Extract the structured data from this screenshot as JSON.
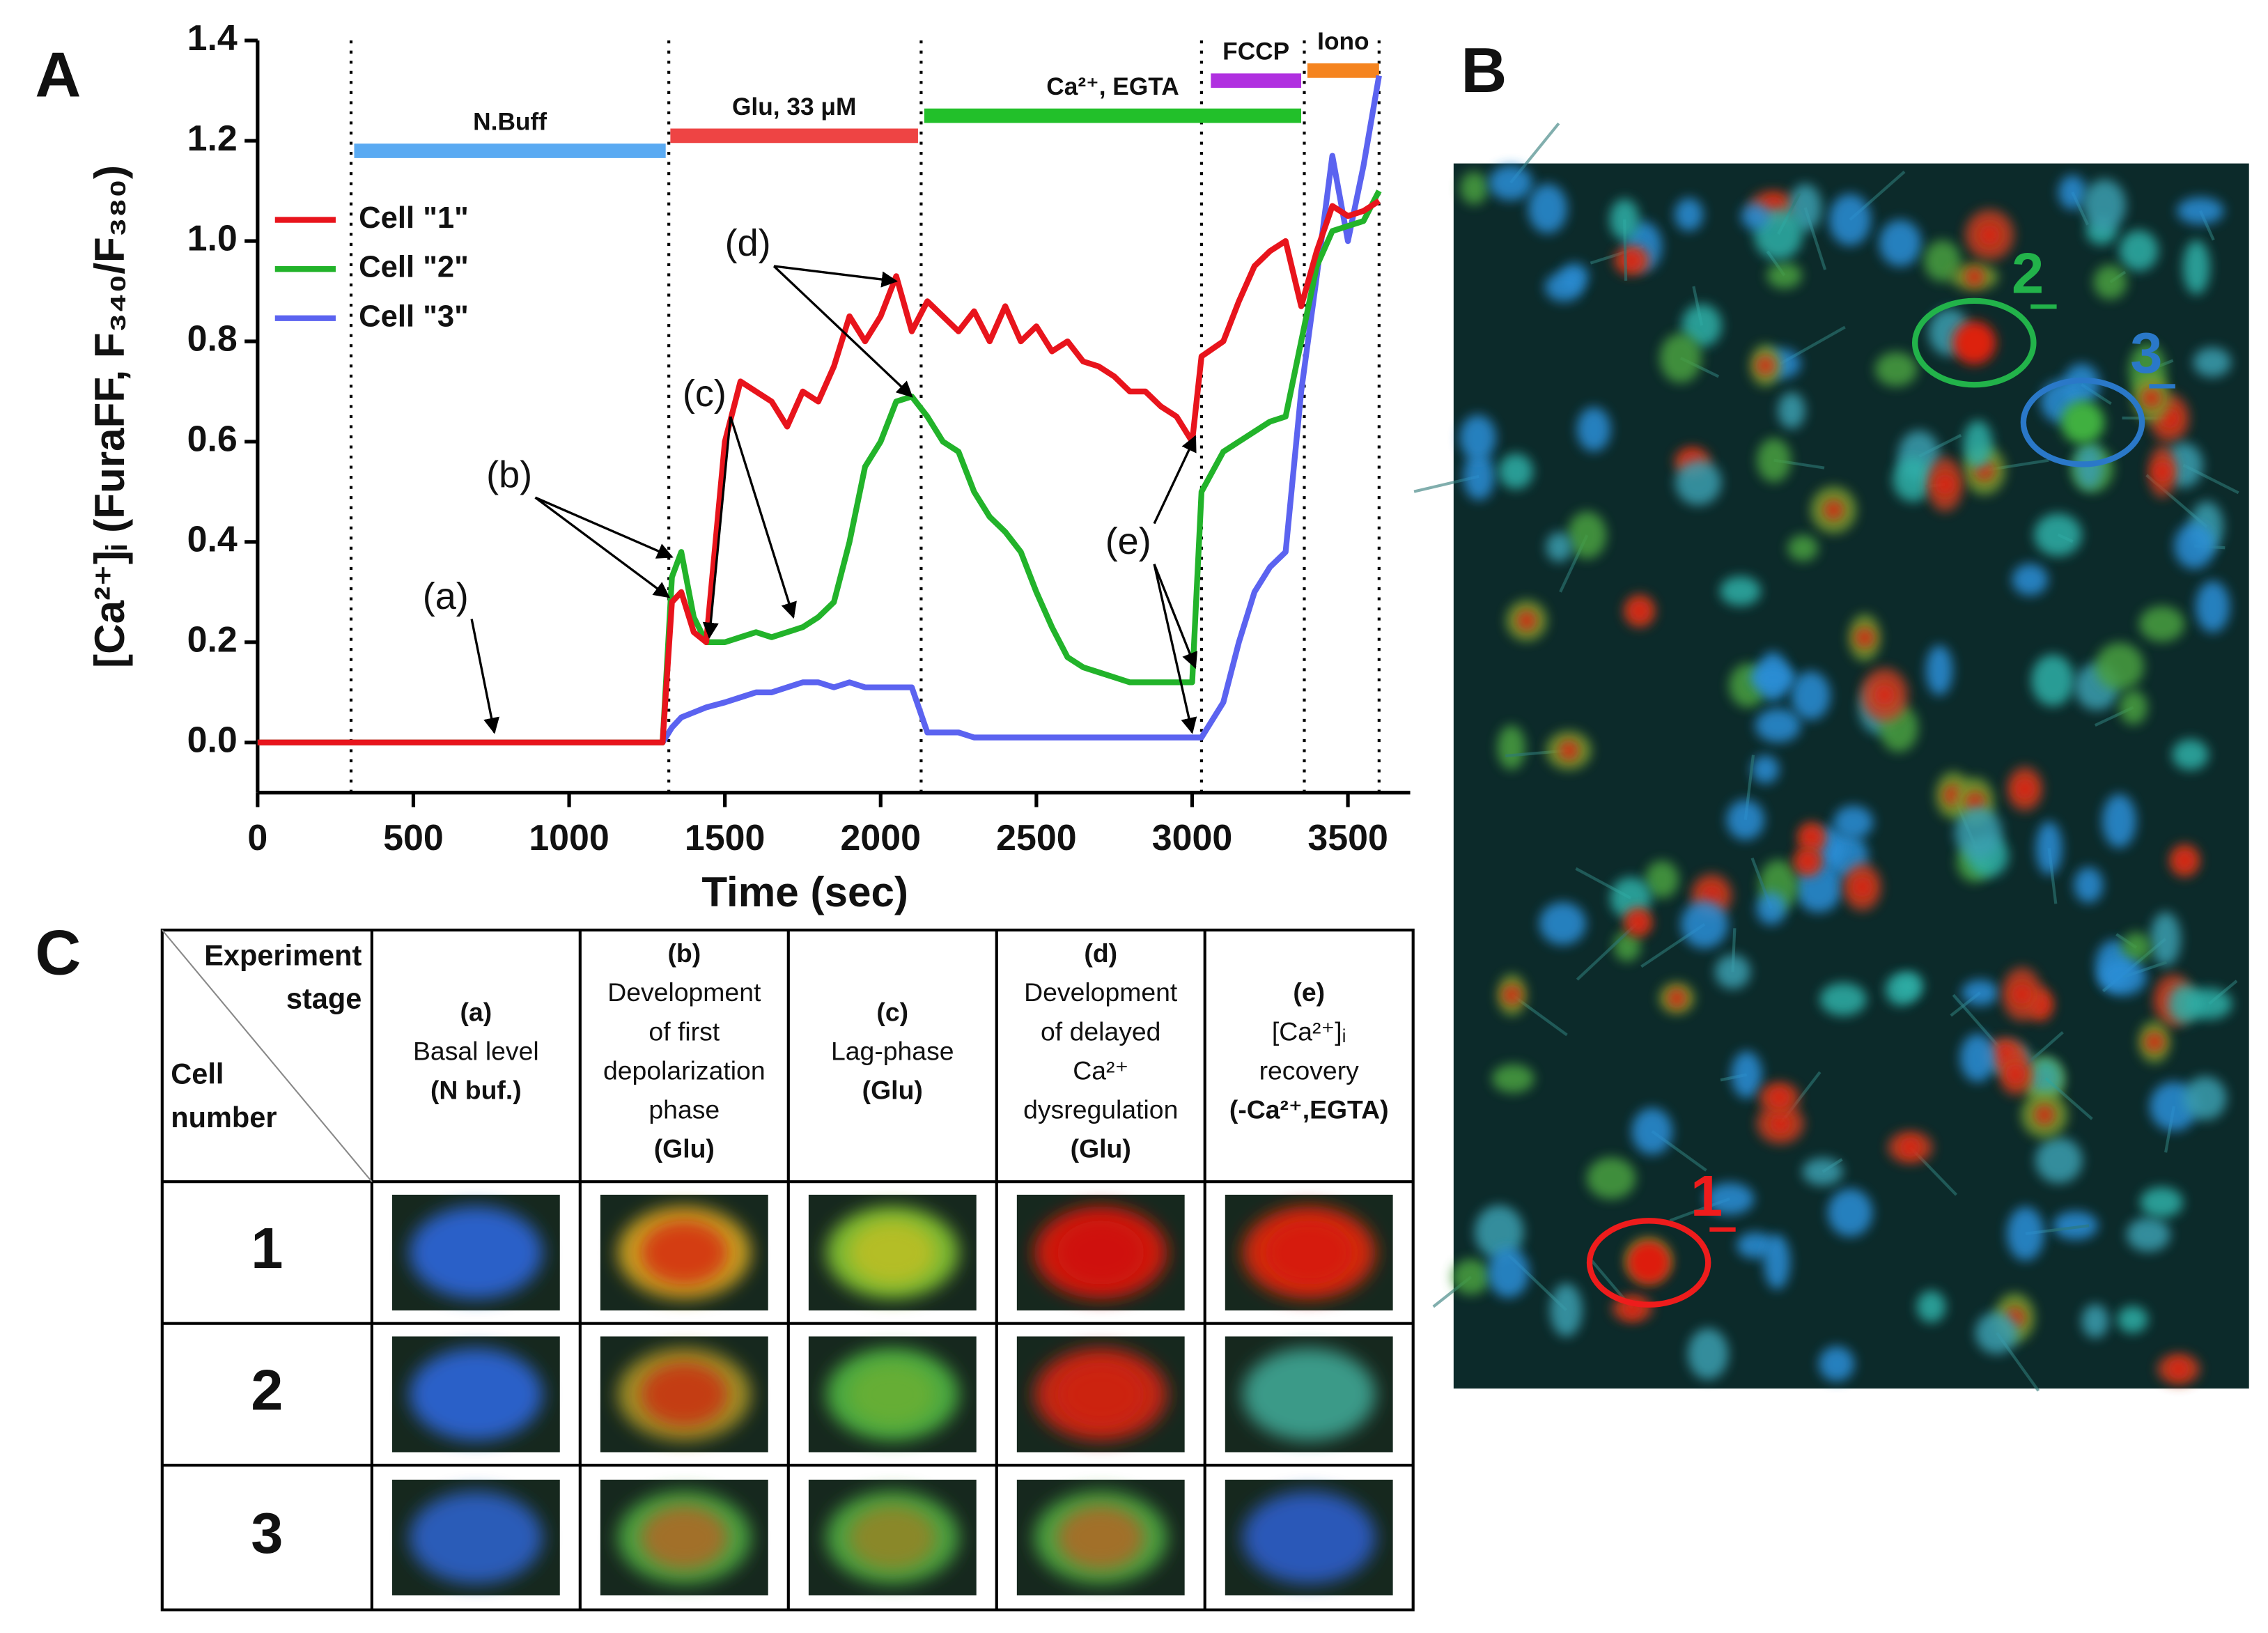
{
  "chart_data": {
    "type": "line",
    "x_label": "Time (sec)",
    "y_label": "[Ca²⁺]ᵢ (FuraFF, F₃₄₀/F₃₈₀)",
    "xlim": [
      0,
      3700
    ],
    "ylim": [
      -0.1,
      1.4
    ],
    "xticks": [
      0,
      500,
      1000,
      1500,
      2000,
      2500,
      3000,
      3500
    ],
    "yticks": [
      {
        "value": 0,
        "label": "0.0"
      },
      0.2,
      0.4,
      0.6,
      0.8,
      {
        "value": 1,
        "label": "1.0"
      },
      1.2,
      1.4
    ],
    "legend": "upper left",
    "x": [
      0,
      100,
      200,
      300,
      400,
      500,
      600,
      700,
      800,
      900,
      1000,
      1100,
      1200,
      1300,
      1330,
      1360,
      1400,
      1440,
      1500,
      1550,
      1600,
      1650,
      1700,
      1750,
      1800,
      1850,
      1900,
      1950,
      2000,
      2050,
      2100,
      2150,
      2200,
      2250,
      2300,
      2350,
      2400,
      2450,
      2500,
      2550,
      2600,
      2650,
      2700,
      2750,
      2800,
      2850,
      2900,
      2950,
      3000,
      3030,
      3100,
      3150,
      3200,
      3250,
      3300,
      3350,
      3400,
      3450,
      3500,
      3550,
      3600
    ],
    "series": [
      {
        "name": "Cell \"1\"",
        "color": "#e8141c",
        "values": [
          0,
          0,
          0,
          0,
          0,
          0,
          0,
          0,
          0,
          0,
          0,
          0,
          0,
          0,
          0.28,
          0.3,
          0.22,
          0.2,
          0.6,
          0.72,
          0.7,
          0.68,
          0.63,
          0.7,
          0.68,
          0.75,
          0.85,
          0.8,
          0.85,
          0.93,
          0.82,
          0.88,
          0.85,
          0.82,
          0.86,
          0.8,
          0.87,
          0.8,
          0.83,
          0.78,
          0.8,
          0.76,
          0.75,
          0.73,
          0.7,
          0.7,
          0.67,
          0.65,
          0.6,
          0.77,
          0.8,
          0.88,
          0.95,
          0.98,
          1.0,
          0.87,
          0.98,
          1.07,
          1.05,
          1.06,
          1.08
        ]
      },
      {
        "name": "Cell \"2\"",
        "color": "#22b32a",
        "values": [
          0,
          0,
          0,
          0,
          0,
          0,
          0,
          0,
          0,
          0,
          0,
          0,
          0,
          0,
          0.33,
          0.38,
          0.25,
          0.2,
          0.2,
          0.21,
          0.22,
          0.21,
          0.22,
          0.23,
          0.25,
          0.28,
          0.4,
          0.55,
          0.6,
          0.68,
          0.69,
          0.65,
          0.6,
          0.58,
          0.5,
          0.45,
          0.42,
          0.38,
          0.3,
          0.23,
          0.17,
          0.15,
          0.14,
          0.13,
          0.12,
          0.12,
          0.12,
          0.12,
          0.12,
          0.5,
          0.58,
          0.6,
          0.62,
          0.64,
          0.65,
          0.8,
          0.95,
          1.02,
          1.03,
          1.04,
          1.1
        ]
      },
      {
        "name": "Cell \"3\"",
        "color": "#5b63f0",
        "values": [
          0,
          0,
          0,
          0,
          0,
          0,
          0,
          0,
          0,
          0,
          0,
          0,
          0,
          0,
          0.03,
          0.05,
          0.06,
          0.07,
          0.08,
          0.09,
          0.1,
          0.1,
          0.11,
          0.12,
          0.12,
          0.11,
          0.12,
          0.11,
          0.11,
          0.11,
          0.11,
          0.02,
          0.02,
          0.02,
          0.01,
          0.01,
          0.01,
          0.01,
          0.01,
          0.01,
          0.01,
          0.01,
          0.01,
          0.01,
          0.01,
          0.01,
          0.01,
          0.01,
          0.01,
          0.01,
          0.08,
          0.2,
          0.3,
          0.35,
          0.38,
          0.7,
          0.93,
          1.17,
          1.0,
          1.15,
          1.33
        ]
      }
    ],
    "stage_boundaries": [
      300,
      1320,
      2130,
      3030,
      3360,
      3600
    ],
    "phases": [
      {
        "label": "N.Buff",
        "start": 310,
        "end": 1310,
        "level": 1.18,
        "color": "#5aaaf2"
      },
      {
        "label": "Glu, 33 μM",
        "start": 1325,
        "end": 2120,
        "level": 1.21,
        "color": "#ee4444"
      },
      {
        "label": "Ca²⁺, EGTA",
        "start": 2140,
        "end": 3350,
        "level": 1.25,
        "color": "#22c02a"
      },
      {
        "label": "FCCP",
        "start": 3060,
        "end": 3350,
        "level": 1.32,
        "color": "#b030e0"
      },
      {
        "label": "Iono",
        "start": 3370,
        "end": 3600,
        "level": 1.34,
        "color": "#f5841f"
      }
    ],
    "annotations": [
      {
        "text": "(a)",
        "targets": [
          [
            760,
            0.02
          ]
        ]
      },
      {
        "text": "(b)",
        "targets": [
          [
            1330,
            0.37
          ],
          [
            1320,
            0.29
          ]
        ]
      },
      {
        "text": "(c)",
        "targets": [
          [
            1450,
            0.21
          ],
          [
            1720,
            0.25
          ]
        ]
      },
      {
        "text": "(d)",
        "targets": [
          [
            2050,
            0.92
          ],
          [
            2100,
            0.69
          ]
        ]
      },
      {
        "text": "(e)",
        "targets": [
          [
            3010,
            0.61
          ],
          [
            3010,
            0.15
          ],
          [
            3000,
            0.02
          ]
        ]
      }
    ]
  },
  "panels": [
    "A",
    "B",
    "C"
  ],
  "image_labels": [
    "1",
    "2",
    "3"
  ],
  "table": {
    "corner_top": [
      "Experiment",
      "stage"
    ],
    "corner_bottom": [
      "Cell",
      "number"
    ],
    "columns": [
      {
        "label": "(a)",
        "description": [
          "Basal level"
        ],
        "condition": "(N buf.)"
      },
      {
        "label": "(b)",
        "description": [
          "Development",
          "of first",
          "depolarization",
          "phase"
        ],
        "condition": "(Glu)"
      },
      {
        "label": "(c)",
        "description": [
          "Lag-phase"
        ],
        "condition": "(Glu)"
      },
      {
        "label": "(d)",
        "description": [
          "Development",
          "of  delayed",
          "Ca²⁺",
          "dysregulation"
        ],
        "condition": "(Glu)"
      },
      {
        "label": "(e)",
        "description": [
          "[Ca²⁺]ᵢ",
          "recovery"
        ],
        "condition": "(-Ca²⁺,EGTA)"
      }
    ],
    "rows": [
      "1",
      "2",
      "3"
    ]
  }
}
